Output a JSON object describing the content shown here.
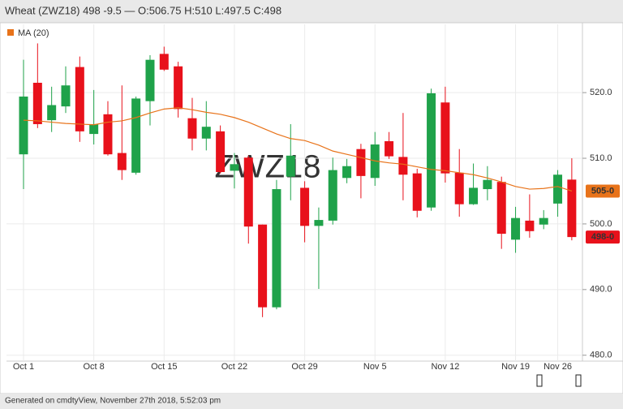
{
  "chart_data": {
    "type": "candlestick",
    "title": "Wheat (ZWZ18) 498 -9.5 — O:506.75 H:510 L:497.5 C:498",
    "watermark": "ZWZ18",
    "categories": [
      "Oct 1",
      null,
      null,
      null,
      null,
      "Oct 8",
      null,
      null,
      null,
      null,
      "Oct 15",
      null,
      null,
      null,
      null,
      "Oct 22",
      null,
      null,
      null,
      null,
      "Oct 29",
      null,
      null,
      null,
      null,
      "Nov 5",
      null,
      null,
      null,
      null,
      "Nov 12",
      null,
      null,
      null,
      null,
      "Nov 19",
      null,
      null,
      "Nov 26",
      null
    ],
    "open": [
      510.6,
      521.5,
      515.8,
      517.9,
      523.9,
      513.7,
      516.7,
      510.8,
      507.8,
      518.7,
      525.9,
      524.0,
      516.1,
      513.0,
      514.1,
      508.1,
      510.1,
      499.9,
      487.3,
      507.2,
      505.5,
      499.7,
      500.5,
      507.0,
      511.4,
      507.0,
      512.6,
      510.2,
      507.7,
      502.5,
      518.5,
      507.8,
      503.0,
      505.3,
      506.4,
      497.6,
      500.5,
      499.9,
      503.1,
      506.75
    ],
    "high": [
      525.0,
      527.5,
      520.9,
      524.0,
      525.5,
      520.4,
      518.7,
      521.1,
      519.4,
      525.7,
      527.0,
      524.7,
      519.2,
      518.7,
      515.0,
      510.8,
      510.4,
      499.9,
      506.7,
      515.2,
      506.5,
      502.5,
      510.1,
      509.9,
      512.2,
      514.0,
      514.0,
      516.9,
      508.4,
      520.6,
      520.9,
      511.4,
      509.2,
      508.8,
      507.2,
      502.6,
      504.5,
      502.1,
      508.2,
      510
    ],
    "low": [
      505.3,
      514.6,
      514.0,
      516.9,
      512.5,
      512.1,
      510.4,
      506.7,
      507.5,
      515.0,
      523.3,
      516.2,
      511.2,
      511.2,
      507.7,
      505.4,
      497.0,
      485.8,
      487.0,
      503.6,
      497.2,
      490.1,
      499.9,
      506.2,
      503.9,
      505.8,
      509.9,
      503.6,
      501.0,
      502.0,
      506.3,
      501.1,
      502.9,
      503.6,
      496.2,
      495.6,
      497.9,
      499.2,
      501.1,
      497.5
    ],
    "close": [
      519.4,
      515.2,
      518.1,
      521.1,
      514.1,
      515.2,
      510.6,
      508.2,
      519.1,
      525.0,
      523.5,
      517.5,
      513.0,
      514.8,
      507.9,
      509.1,
      499.6,
      487.3,
      505.3,
      510.4,
      499.7,
      500.6,
      508.2,
      508.8,
      507.3,
      512.1,
      510.3,
      507.5,
      502.0,
      519.9,
      507.7,
      503.0,
      505.5,
      506.7,
      498.5,
      500.9,
      498.9,
      500.9,
      507.5,
      498
    ],
    "up_color": "#1fa24a",
    "down_color": "#e8111b",
    "close_label": "498-0",
    "series": [
      {
        "name": "MA (20)",
        "color": "#e8731a",
        "values": [
          515.8,
          515.7,
          515.5,
          515.3,
          515.2,
          515.1,
          515.5,
          515.7,
          516.2,
          516.9,
          517.5,
          517.7,
          517.4,
          517.0,
          516.7,
          516.2,
          515.5,
          514.6,
          513.7,
          513.0,
          512.7,
          512.0,
          511.1,
          510.6,
          510.1,
          509.6,
          509.3,
          509.1,
          508.7,
          508.3,
          508.1,
          507.8,
          507.5,
          507.0,
          506.4,
          505.7,
          505.3,
          505.4,
          505.7,
          505.0
        ],
        "last_label": "505-0"
      }
    ],
    "ylim": [
      479.1,
      530.4
    ],
    "yticks": [
      {
        "value": 480,
        "label": "480.0"
      },
      {
        "value": 490,
        "label": "490.0"
      },
      {
        "value": 500,
        "label": "500.0"
      },
      {
        "value": 510,
        "label": "510.0"
      },
      {
        "value": 520,
        "label": "520.0"
      }
    ],
    "grid": true
  },
  "footer": "Generated on cmdtyView, November 27th 2018, 5:52:03 pm"
}
